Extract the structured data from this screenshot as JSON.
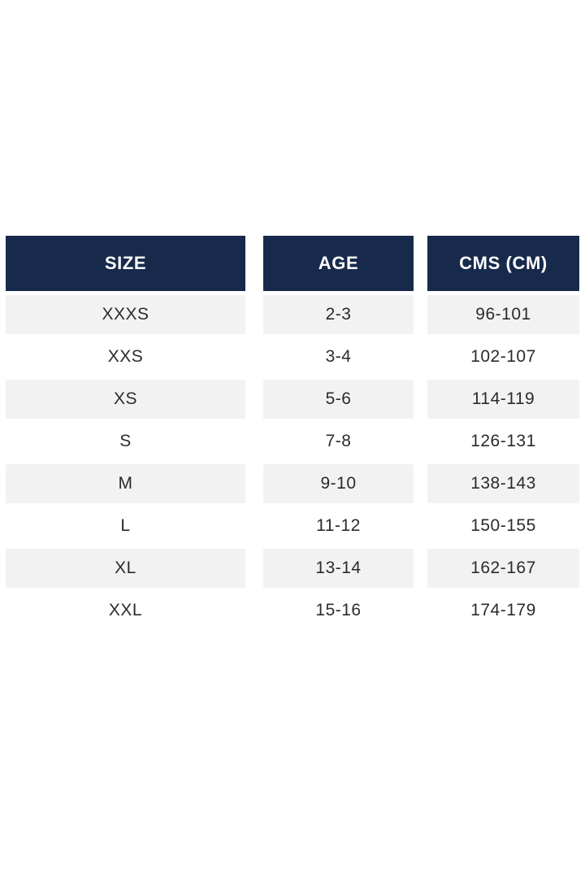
{
  "chart_data": {
    "type": "table",
    "title": "",
    "columns": [
      "SIZE",
      "AGE",
      "CMS (CM)"
    ],
    "rows": [
      [
        "XXXS",
        "2-3",
        "96-101"
      ],
      [
        "XXS",
        "3-4",
        "102-107"
      ],
      [
        "XS",
        "5-6",
        "114-119"
      ],
      [
        "S",
        "7-8",
        "126-131"
      ],
      [
        "M",
        "9-10",
        "138-143"
      ],
      [
        "L",
        "11-12",
        "150-155"
      ],
      [
        "XL",
        "13-14",
        "162-167"
      ],
      [
        "XXL",
        "15-16",
        "174-179"
      ]
    ]
  },
  "size_chart": {
    "columns": [
      {
        "key": "size",
        "label": "SIZE"
      },
      {
        "key": "age",
        "label": "AGE"
      },
      {
        "key": "cms",
        "label": "CMS (CM)"
      }
    ],
    "rows": [
      {
        "size": "XXXS",
        "age": "2-3",
        "cms": "96-101"
      },
      {
        "size": "XXS",
        "age": "3-4",
        "cms": "102-107"
      },
      {
        "size": "XS",
        "age": "5-6",
        "cms": "114-119"
      },
      {
        "size": "S",
        "age": "7-8",
        "cms": "126-131"
      },
      {
        "size": "M",
        "age": "9-10",
        "cms": "138-143"
      },
      {
        "size": "L",
        "age": "11-12",
        "cms": "150-155"
      },
      {
        "size": "XL",
        "age": "13-14",
        "cms": "162-167"
      },
      {
        "size": "XXL",
        "age": "15-16",
        "cms": "174-179"
      }
    ],
    "colors": {
      "header_bg": "#172a4b",
      "header_text": "#ffffff",
      "row_alt_bg": "#f2f2f2",
      "row_bg": "#ffffff",
      "cell_text": "#2b2b2b",
      "page_bg": "#ffffff"
    }
  }
}
